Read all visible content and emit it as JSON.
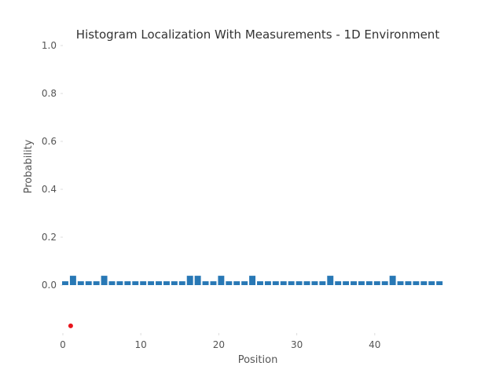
{
  "chart_data": {
    "type": "bar",
    "title": "Histogram Localization With Measurements - 1D Environment",
    "xlabel": "Position",
    "ylabel": "Probability",
    "xlim": [
      -1,
      49.5
    ],
    "ylim": [
      -0.2,
      1.0
    ],
    "x_ticks": [
      0,
      10,
      20,
      30,
      40
    ],
    "y_ticks": [
      0.0,
      0.2,
      0.4,
      0.6,
      0.8,
      1.0
    ],
    "y_tick_labels": [
      "0.0",
      "0.2",
      "0.4",
      "0.6",
      "0.8",
      "1.0"
    ],
    "grid": false,
    "bar_color": "#2878b5",
    "marker_color": "#e8141c",
    "positions": [
      0,
      1,
      2,
      3,
      4,
      5,
      6,
      7,
      8,
      9,
      10,
      11,
      12,
      13,
      14,
      15,
      16,
      17,
      18,
      19,
      20,
      21,
      22,
      23,
      24,
      25,
      26,
      27,
      28,
      29,
      30,
      31,
      32,
      33,
      34,
      35,
      36,
      37,
      38,
      39,
      40,
      41,
      42,
      43,
      44,
      45,
      46,
      47,
      48
    ],
    "values": [
      0.016,
      0.039,
      0.016,
      0.016,
      0.016,
      0.039,
      0.016,
      0.016,
      0.016,
      0.016,
      0.016,
      0.016,
      0.016,
      0.016,
      0.016,
      0.016,
      0.039,
      0.039,
      0.016,
      0.016,
      0.039,
      0.016,
      0.016,
      0.016,
      0.039,
      0.016,
      0.016,
      0.016,
      0.016,
      0.016,
      0.016,
      0.016,
      0.016,
      0.016,
      0.039,
      0.016,
      0.016,
      0.016,
      0.016,
      0.016,
      0.016,
      0.016,
      0.039,
      0.016,
      0.016,
      0.016,
      0.016,
      0.016,
      0.016
    ],
    "robot_position": 1,
    "robot_y": -0.17
  }
}
